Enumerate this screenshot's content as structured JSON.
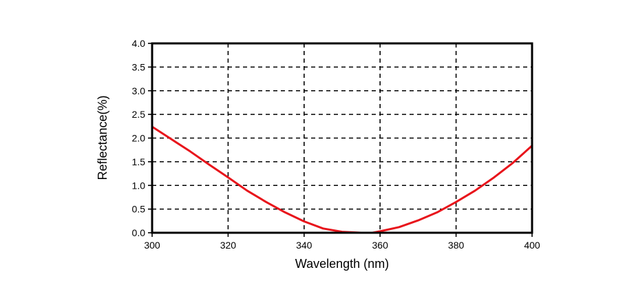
{
  "chart_data": {
    "type": "line",
    "title": "",
    "xlabel": "Wavelength (nm)",
    "ylabel": "Reflectance(%)",
    "xlim": [
      300,
      400
    ],
    "ylim": [
      0,
      4
    ],
    "xticks": [
      300,
      320,
      340,
      360,
      380,
      400
    ],
    "yticks": [
      0.0,
      0.5,
      1.0,
      1.5,
      2.0,
      2.5,
      3.0,
      3.5,
      4.0
    ],
    "xtick_labels": [
      "300",
      "320",
      "340",
      "360",
      "380",
      "400"
    ],
    "ytick_labels": [
      "0.0",
      "0.5",
      "1.0",
      "1.5",
      "2.0",
      "2.5",
      "3.0",
      "3.5",
      "4.0"
    ],
    "grid": true,
    "series": [
      {
        "color": "#e8141b",
        "x": [
          300,
          305,
          310,
          315,
          320,
          325,
          330,
          335,
          340,
          345,
          350,
          355,
          358,
          360,
          365,
          370,
          375,
          380,
          385,
          390,
          395,
          400
        ],
        "y": [
          2.24,
          1.98,
          1.72,
          1.44,
          1.17,
          0.89,
          0.65,
          0.43,
          0.24,
          0.09,
          0.02,
          0.0,
          0.0,
          0.03,
          0.12,
          0.26,
          0.43,
          0.65,
          0.89,
          1.17,
          1.48,
          1.84
        ]
      }
    ]
  }
}
